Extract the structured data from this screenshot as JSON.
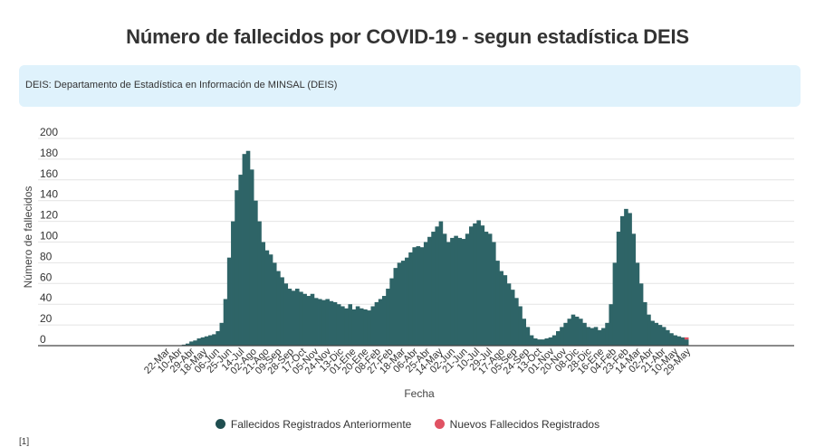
{
  "title": "Número de fallecidos por COVID-19 - segun estadística DEIS",
  "note": "DEIS: Departamento de Estadística en Información de MINSAL (DEIS)",
  "footnote": "[1]",
  "chart_data": {
    "type": "bar",
    "xlabel": "Fecha",
    "ylabel": "Número de fallecidos",
    "ylim": [
      0,
      200
    ],
    "yticks": [
      0,
      20,
      40,
      60,
      80,
      100,
      120,
      140,
      160,
      180,
      200
    ],
    "grid": true,
    "legend_position": "bottom",
    "x_tick_labels": [
      "22-Mar",
      "10-Abr",
      "29-Abr",
      "18-May",
      "06-Jun",
      "25-Jun",
      "14-Jul",
      "02-Ago",
      "21-Ago",
      "09-Sep",
      "28-Sep",
      "17-Oct",
      "05-Nov",
      "24-Nov",
      "13-Dic",
      "01-Ene",
      "20-Ene",
      "08-Feb",
      "27-Feb",
      "18-Mar",
      "06-Abr",
      "25-Abr",
      "14-May",
      "02-Jun",
      "21-Jun",
      "10-Jul",
      "29-Jul",
      "17-Ago",
      "05-Sep",
      "24-Sep",
      "13-Oct",
      "01-Nov",
      "20-Nov",
      "08-Dic",
      "28-Dic",
      "16-Ene",
      "04-Feb",
      "23-Feb",
      "14-Mar",
      "02-Abr",
      "21-Abr",
      "10-May",
      "29-May"
    ],
    "series": [
      {
        "name": "Fallecidos Registrados Anteriormente",
        "color": "#2e6467",
        "values": [
          0,
          0,
          0,
          0,
          0,
          1,
          2,
          4,
          5,
          7,
          8,
          9,
          10,
          11,
          14,
          22,
          45,
          85,
          120,
          150,
          165,
          185,
          188,
          170,
          140,
          120,
          100,
          92,
          88,
          80,
          72,
          66,
          60,
          55,
          53,
          55,
          52,
          50,
          48,
          50,
          46,
          45,
          44,
          45,
          43,
          42,
          40,
          38,
          36,
          40,
          35,
          38,
          36,
          35,
          34,
          38,
          42,
          45,
          48,
          55,
          65,
          75,
          80,
          82,
          85,
          90,
          95,
          96,
          95,
          100,
          105,
          110,
          115,
          120,
          108,
          100,
          104,
          106,
          104,
          103,
          108,
          115,
          118,
          121,
          116,
          110,
          108,
          100,
          82,
          72,
          68,
          60,
          54,
          46,
          38,
          26,
          18,
          10,
          7,
          6,
          6,
          7,
          8,
          10,
          14,
          18,
          22,
          26,
          30,
          28,
          26,
          22,
          18,
          17,
          18,
          15,
          17,
          22,
          40,
          80,
          110,
          125,
          132,
          128,
          108,
          80,
          60,
          42,
          30,
          24,
          22,
          20,
          18,
          15,
          12,
          10,
          9,
          8,
          6
        ]
      },
      {
        "name": "Nuevos Fallecidos Registrados",
        "color": "#e05263",
        "values": [
          0,
          0,
          0,
          0,
          0,
          0,
          0,
          0,
          0,
          0,
          0,
          0,
          0,
          0,
          0,
          0,
          0,
          0,
          0,
          0,
          0,
          0,
          0,
          0,
          0,
          0,
          0,
          0,
          0,
          0,
          0,
          0,
          0,
          0,
          0,
          0,
          0,
          0,
          0,
          0,
          0,
          0,
          0,
          0,
          0,
          0,
          0,
          0,
          0,
          0,
          0,
          0,
          0,
          0,
          0,
          0,
          0,
          0,
          0,
          0,
          0,
          0,
          0,
          0,
          0,
          0,
          0,
          0,
          0,
          0,
          0,
          0,
          0,
          0,
          0,
          0,
          0,
          0,
          0,
          0,
          0,
          0,
          0,
          0,
          0,
          0,
          0,
          0,
          0,
          0,
          0,
          0,
          0,
          0,
          0,
          0,
          0,
          0,
          0,
          0,
          0,
          0,
          0,
          0,
          0,
          0,
          0,
          0,
          0,
          0,
          0,
          0,
          0,
          0,
          0,
          0,
          0,
          0,
          0,
          0,
          0,
          0,
          0,
          0,
          0,
          0,
          0,
          0,
          0,
          0,
          0,
          0,
          0,
          0,
          0,
          0,
          0,
          0,
          2
        ]
      }
    ]
  }
}
